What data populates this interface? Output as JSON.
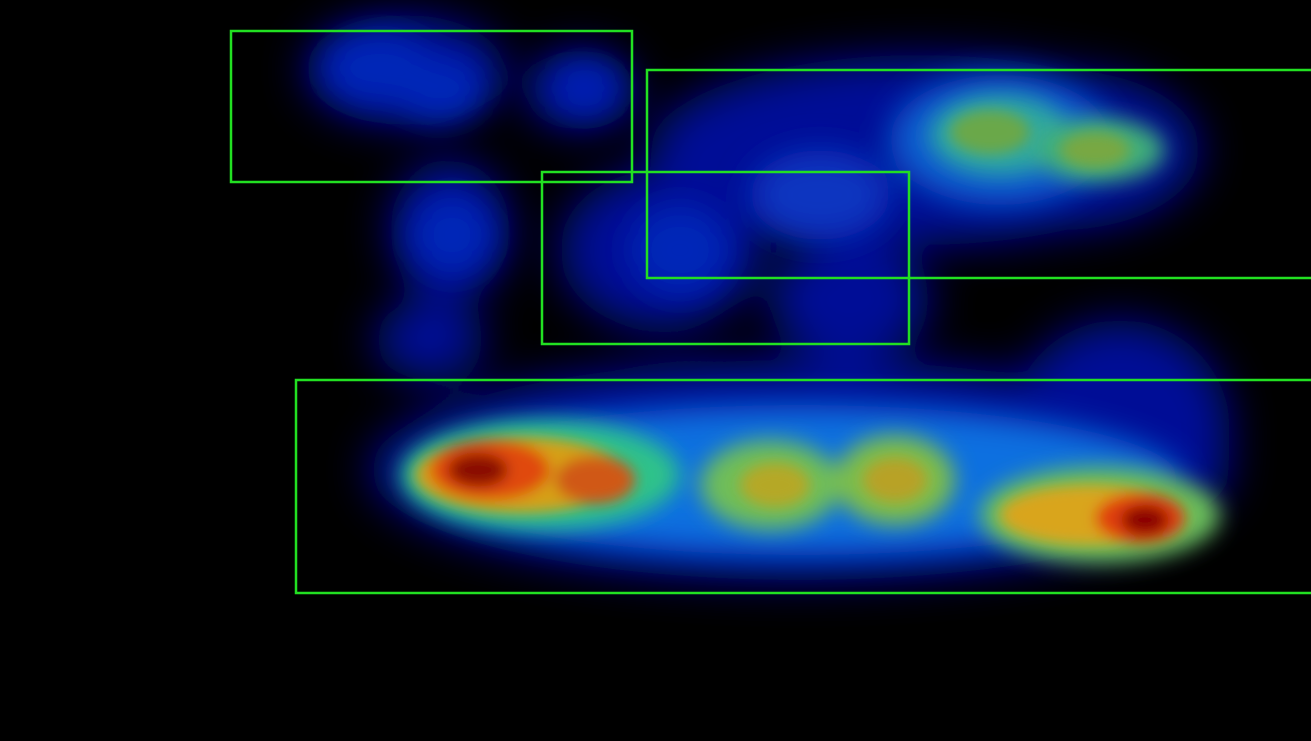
{
  "view": {
    "description_kind": "saliency heatmap overlay",
    "background_color": "#000000",
    "box_color": "#22e022",
    "colormap": "jet",
    "colormap_stops": [
      "#00007f",
      "#0000ff",
      "#007fff",
      "#00ffff",
      "#7fff7f",
      "#ffff00",
      "#ff7f00",
      "#ff0000",
      "#7f0000"
    ]
  },
  "detections": {
    "count_shown": 4,
    "labels_shown": []
  },
  "heat_levels": {
    "peak_left_bottom": 1.0,
    "peak_right_bottom": 1.0,
    "middle_bottom": 0.72,
    "upper_right": 0.55,
    "upper_left": 0.25,
    "center": 0.22
  }
}
